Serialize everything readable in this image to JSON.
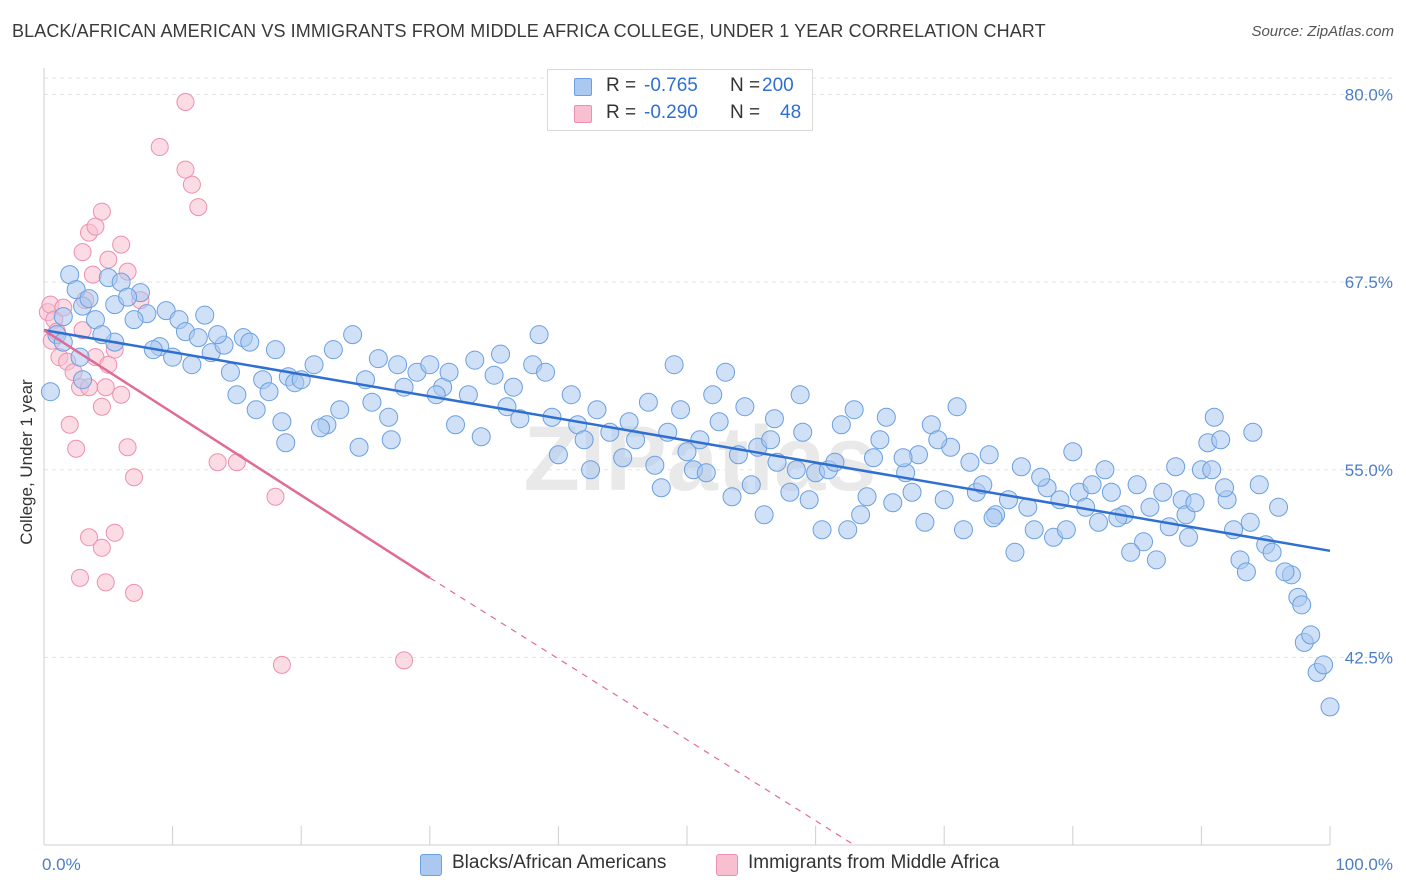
{
  "header": {
    "title": "BLACK/AFRICAN AMERICAN VS IMMIGRANTS FROM MIDDLE AFRICA COLLEGE, UNDER 1 YEAR CORRELATION CHART",
    "source": "Source: ZipAtlas.com"
  },
  "legend_top": {
    "row1": {
      "r_label": "R =",
      "r_value": "-0.765",
      "n_label": "N =",
      "n_value": "200"
    },
    "row2": {
      "r_label": "R =",
      "r_value": "-0.290",
      "n_label": "N =",
      "n_value": "48"
    }
  },
  "legend_bottom": {
    "item1": "Blacks/African Americans",
    "item2": "Immigrants from Middle Africa"
  },
  "colors": {
    "blue_fill": "#aac8f0",
    "blue_stroke": "#6a9fe0",
    "blue_line": "#2f6fd0",
    "pink_fill": "#f7bfd0",
    "pink_stroke": "#ee8fb0",
    "pink_line": "#e06b96",
    "tick_text": "#4a7ec8",
    "grid": "#e3e3e3"
  },
  "watermark": "ZIPatlas",
  "chart_data": {
    "type": "scatter",
    "title": "BLACK/AFRICAN AMERICAN VS IMMIGRANTS FROM MIDDLE AFRICA COLLEGE, UNDER 1 YEAR CORRELATION CHART",
    "xlabel": "",
    "ylabel": "College, Under 1 year",
    "x_tick_labels": [
      "0.0%",
      "100.0%"
    ],
    "y_tick_labels": [
      "80.0%",
      "67.5%",
      "55.0%",
      "42.5%"
    ],
    "y_ticks": [
      80.0,
      67.5,
      55.0,
      42.5
    ],
    "xlim": [
      0,
      100
    ],
    "ylim": [
      30.0,
      81.5
    ],
    "grid": true,
    "legend_position": "top-center",
    "series": [
      {
        "name": "Blacks/African Americans",
        "color": "#aac8f0",
        "trendline": {
          "x0": 0,
          "y0": 64.3,
          "x1": 100,
          "y1": 49.6,
          "style": "solid"
        },
        "points": [
          [
            0.5,
            60.2
          ],
          [
            1.0,
            64.0
          ],
          [
            1.5,
            65.2
          ],
          [
            2.0,
            68.0
          ],
          [
            2.5,
            67.0
          ],
          [
            3.0,
            65.9
          ],
          [
            3.5,
            66.4
          ],
          [
            4.0,
            65.0
          ],
          [
            5.0,
            67.8
          ],
          [
            5.5,
            66.0
          ],
          [
            6.0,
            67.5
          ],
          [
            7.5,
            66.8
          ],
          [
            8.0,
            65.4
          ],
          [
            9.0,
            63.2
          ],
          [
            9.5,
            65.6
          ],
          [
            10.5,
            65.0
          ],
          [
            11.0,
            64.2
          ],
          [
            12.0,
            63.8
          ],
          [
            12.5,
            65.3
          ],
          [
            13.0,
            62.8
          ],
          [
            14.0,
            63.3
          ],
          [
            15.0,
            60.0
          ],
          [
            15.5,
            63.8
          ],
          [
            16.0,
            63.5
          ],
          [
            17.0,
            61.0
          ],
          [
            17.5,
            60.2
          ],
          [
            18.0,
            63.0
          ],
          [
            18.5,
            58.2
          ],
          [
            19.0,
            61.2
          ],
          [
            19.5,
            60.8
          ],
          [
            20.0,
            61.0
          ],
          [
            21.0,
            62.0
          ],
          [
            22.0,
            58.0
          ],
          [
            23.0,
            59.0
          ],
          [
            24.0,
            64.0
          ],
          [
            25.0,
            61.0
          ],
          [
            26.0,
            62.4
          ],
          [
            27.0,
            57.0
          ],
          [
            28.0,
            60.5
          ],
          [
            29.0,
            61.5
          ],
          [
            30.0,
            62.0
          ],
          [
            31.0,
            60.5
          ],
          [
            31.5,
            61.5
          ],
          [
            32.0,
            58.0
          ],
          [
            33.0,
            60.0
          ],
          [
            34.0,
            57.2
          ],
          [
            35.0,
            61.3
          ],
          [
            35.5,
            62.7
          ],
          [
            36.0,
            59.2
          ],
          [
            37.0,
            58.4
          ],
          [
            38.0,
            62.0
          ],
          [
            38.5,
            64.0
          ],
          [
            39.0,
            61.5
          ],
          [
            40.0,
            56.0
          ],
          [
            41.0,
            60.0
          ],
          [
            41.5,
            58.0
          ],
          [
            42.0,
            57.0
          ],
          [
            43.0,
            59.0
          ],
          [
            44.0,
            57.5
          ],
          [
            45.0,
            55.8
          ],
          [
            46.0,
            57.0
          ],
          [
            47.0,
            59.5
          ],
          [
            48.0,
            53.8
          ],
          [
            48.5,
            57.5
          ],
          [
            49.0,
            62.0
          ],
          [
            50.0,
            56.2
          ],
          [
            50.5,
            55.0
          ],
          [
            51.0,
            57.0
          ],
          [
            52.0,
            60.0
          ],
          [
            52.5,
            58.2
          ],
          [
            53.0,
            61.5
          ],
          [
            54.0,
            56.0
          ],
          [
            54.5,
            59.2
          ],
          [
            55.0,
            54.0
          ],
          [
            55.5,
            56.5
          ],
          [
            56.0,
            52.0
          ],
          [
            56.5,
            57.0
          ],
          [
            57.0,
            55.5
          ],
          [
            58.0,
            53.5
          ],
          [
            58.5,
            55.0
          ],
          [
            59.0,
            57.5
          ],
          [
            59.5,
            53.0
          ],
          [
            60.0,
            54.8
          ],
          [
            61.0,
            55.0
          ],
          [
            62.0,
            58.0
          ],
          [
            62.5,
            51.0
          ],
          [
            63.0,
            59.0
          ],
          [
            64.0,
            53.2
          ],
          [
            64.5,
            55.8
          ],
          [
            65.0,
            57.0
          ],
          [
            66.0,
            52.8
          ],
          [
            67.0,
            54.8
          ],
          [
            67.5,
            53.5
          ],
          [
            68.0,
            56.0
          ],
          [
            69.0,
            58.0
          ],
          [
            70.0,
            53.0
          ],
          [
            70.5,
            56.5
          ],
          [
            71.0,
            59.2
          ],
          [
            72.0,
            55.5
          ],
          [
            72.5,
            53.5
          ],
          [
            73.0,
            54.0
          ],
          [
            73.5,
            56.0
          ],
          [
            74.0,
            52.0
          ],
          [
            75.0,
            53.0
          ],
          [
            76.0,
            55.2
          ],
          [
            76.5,
            52.5
          ],
          [
            77.0,
            51.0
          ],
          [
            78.0,
            53.8
          ],
          [
            78.5,
            50.5
          ],
          [
            79.0,
            53.0
          ],
          [
            80.0,
            56.2
          ],
          [
            80.5,
            53.5
          ],
          [
            81.0,
            52.5
          ],
          [
            82.0,
            51.5
          ],
          [
            82.5,
            55.0
          ],
          [
            83.0,
            53.5
          ],
          [
            84.0,
            52.0
          ],
          [
            85.0,
            54.0
          ],
          [
            85.5,
            50.2
          ],
          [
            86.0,
            52.5
          ],
          [
            87.0,
            53.5
          ],
          [
            87.5,
            51.2
          ],
          [
            88.0,
            55.2
          ],
          [
            88.5,
            53.0
          ],
          [
            89.0,
            50.5
          ],
          [
            90.0,
            55.0
          ],
          [
            90.5,
            56.8
          ],
          [
            91.0,
            58.5
          ],
          [
            91.5,
            57.0
          ],
          [
            92.0,
            53.0
          ],
          [
            92.5,
            51.0
          ],
          [
            93.0,
            49.0
          ],
          [
            93.5,
            48.2
          ],
          [
            94.0,
            57.5
          ],
          [
            94.5,
            54.0
          ],
          [
            95.0,
            50.0
          ],
          [
            96.0,
            52.5
          ],
          [
            97.0,
            48.0
          ],
          [
            97.5,
            46.5
          ],
          [
            98.0,
            43.5
          ],
          [
            98.5,
            44.0
          ],
          [
            99.0,
            41.5
          ],
          [
            100.0,
            39.2
          ],
          [
            3.0,
            61.0
          ],
          [
            5.5,
            63.5
          ],
          [
            7.0,
            65.0
          ],
          [
            10.0,
            62.5
          ],
          [
            13.5,
            64.0
          ],
          [
            16.5,
            59.0
          ],
          [
            22.5,
            63.0
          ],
          [
            25.5,
            59.5
          ],
          [
            27.5,
            62.0
          ],
          [
            30.5,
            60.0
          ],
          [
            33.5,
            62.3
          ],
          [
            36.5,
            60.5
          ],
          [
            39.5,
            58.5
          ],
          [
            42.5,
            55.0
          ],
          [
            45.5,
            58.2
          ],
          [
            47.5,
            55.3
          ],
          [
            49.5,
            59.0
          ],
          [
            51.5,
            54.8
          ],
          [
            53.5,
            53.2
          ],
          [
            56.8,
            58.4
          ],
          [
            58.8,
            60.0
          ],
          [
            60.5,
            51.0
          ],
          [
            61.5,
            55.5
          ],
          [
            63.5,
            52.0
          ],
          [
            65.5,
            58.5
          ],
          [
            66.8,
            55.8
          ],
          [
            68.5,
            51.5
          ],
          [
            69.5,
            57.0
          ],
          [
            71.5,
            51.0
          ],
          [
            73.8,
            51.8
          ],
          [
            75.5,
            49.5
          ],
          [
            77.5,
            54.5
          ],
          [
            79.5,
            51.0
          ],
          [
            81.5,
            54.0
          ],
          [
            83.5,
            51.8
          ],
          [
            84.5,
            49.5
          ],
          [
            86.5,
            49.0
          ],
          [
            88.8,
            52.0
          ],
          [
            89.5,
            52.8
          ],
          [
            90.8,
            55.0
          ],
          [
            91.8,
            53.8
          ],
          [
            93.8,
            51.5
          ],
          [
            95.5,
            49.5
          ],
          [
            96.5,
            48.2
          ],
          [
            97.8,
            46.0
          ],
          [
            99.5,
            42.0
          ],
          [
            1.5,
            63.5
          ],
          [
            2.8,
            62.5
          ],
          [
            4.5,
            64.0
          ],
          [
            6.5,
            66.5
          ],
          [
            8.5,
            63.0
          ],
          [
            11.5,
            62.0
          ],
          [
            14.5,
            61.5
          ],
          [
            18.8,
            56.8
          ],
          [
            21.5,
            57.8
          ],
          [
            24.5,
            56.5
          ],
          [
            26.8,
            58.5
          ]
        ]
      },
      {
        "name": "Immigrants from Middle Africa",
        "color": "#f7bfd0",
        "trendline": {
          "x0": 0,
          "y0": 64.3,
          "x1": 30,
          "y1": 47.8,
          "dashed_to_x": 63,
          "dashed_to_y": 30.0
        },
        "points": [
          [
            0.3,
            65.5
          ],
          [
            0.5,
            66.0
          ],
          [
            0.6,
            63.6
          ],
          [
            0.8,
            65.0
          ],
          [
            1.0,
            64.2
          ],
          [
            1.2,
            62.5
          ],
          [
            1.5,
            65.8
          ],
          [
            1.8,
            62.2
          ],
          [
            2.0,
            58.0
          ],
          [
            2.3,
            61.5
          ],
          [
            2.5,
            56.4
          ],
          [
            2.8,
            60.5
          ],
          [
            3.0,
            64.3
          ],
          [
            3.2,
            66.3
          ],
          [
            3.5,
            60.5
          ],
          [
            3.8,
            68.0
          ],
          [
            4.0,
            62.5
          ],
          [
            4.5,
            59.2
          ],
          [
            4.8,
            60.5
          ],
          [
            5.0,
            62.0
          ],
          [
            5.5,
            63.0
          ],
          [
            6.0,
            60.0
          ],
          [
            6.5,
            56.5
          ],
          [
            7.0,
            54.5
          ],
          [
            3.5,
            70.8
          ],
          [
            3.0,
            69.5
          ],
          [
            4.0,
            71.2
          ],
          [
            4.5,
            72.2
          ],
          [
            5.0,
            69.0
          ],
          [
            6.0,
            70.0
          ],
          [
            6.5,
            68.2
          ],
          [
            7.5,
            66.3
          ],
          [
            3.5,
            50.5
          ],
          [
            4.5,
            49.8
          ],
          [
            5.5,
            50.8
          ],
          [
            2.8,
            47.8
          ],
          [
            4.8,
            47.5
          ],
          [
            7.0,
            46.8
          ],
          [
            12.0,
            72.5
          ],
          [
            11.5,
            74.0
          ],
          [
            11.0,
            75.0
          ],
          [
            11.0,
            79.5
          ],
          [
            9.0,
            76.5
          ],
          [
            13.5,
            55.5
          ],
          [
            15.0,
            55.5
          ],
          [
            18.0,
            53.2
          ],
          [
            18.5,
            42.0
          ],
          [
            28.0,
            42.3
          ]
        ]
      }
    ]
  }
}
